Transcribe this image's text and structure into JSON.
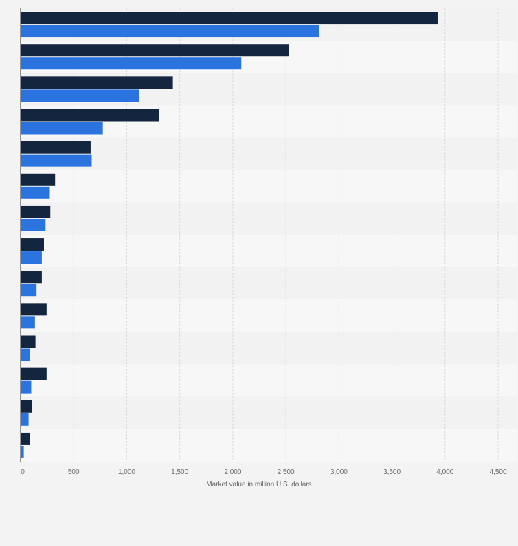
{
  "chart_data": {
    "type": "bar",
    "orientation": "horizontal",
    "categories": [
      "",
      "",
      "",
      "",
      "",
      "",
      "",
      "",
      "",
      "",
      "",
      "",
      "",
      ""
    ],
    "series": [
      {
        "values": [
          3930,
          2530,
          1435,
          1305,
          660,
          325,
          280,
          220,
          200,
          245,
          140,
          245,
          105,
          90
        ],
        "color": "#14263f"
      },
      {
        "values": [
          2815,
          2080,
          1115,
          775,
          670,
          275,
          235,
          200,
          150,
          135,
          90,
          100,
          75,
          30
        ],
        "color": "#2b74e0"
      }
    ],
    "xlabel": "Market value in million U.S. dollars",
    "ylabel": "",
    "xlim": [
      0,
      4500
    ],
    "xticks": [
      {
        "value": 0,
        "label": "0"
      },
      {
        "value": 500,
        "label": "500"
      },
      {
        "value": 1000,
        "label": "1,000"
      },
      {
        "value": 1500,
        "label": "1,500"
      },
      {
        "value": 2000,
        "label": "2,000"
      },
      {
        "value": 2500,
        "label": "2,500"
      },
      {
        "value": 3000,
        "label": "3,000"
      },
      {
        "value": 3500,
        "label": "3,500"
      },
      {
        "value": 4000,
        "label": "4,000"
      },
      {
        "value": 4500,
        "label": "4,500"
      }
    ],
    "grid": true,
    "legend": "none",
    "colors": {
      "background": "#f3f3f3",
      "band_light": "#f7f7f7",
      "band_dark": "#f2f2f2",
      "gridline": "#d9d9d9",
      "axis": "#333333",
      "tick_text": "#666666"
    }
  }
}
